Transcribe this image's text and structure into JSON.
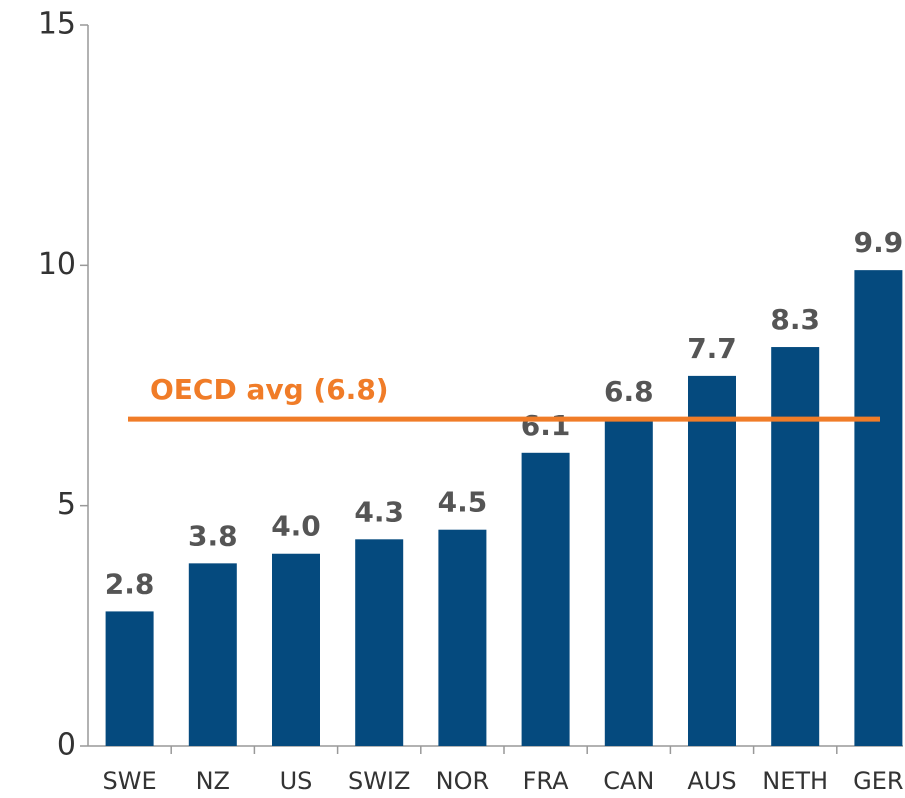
{
  "chart_data": {
    "type": "bar",
    "categories": [
      "SWE",
      "NZ",
      "US",
      "SWIZ",
      "NOR",
      "FRA",
      "CAN",
      "AUS",
      "NETH",
      "GER"
    ],
    "values": [
      2.8,
      3.8,
      4.0,
      4.3,
      4.5,
      6.1,
      6.8,
      7.7,
      8.3,
      9.9
    ],
    "value_labels": [
      "2.8",
      "3.8",
      "4.0",
      "4.3",
      "4.5",
      "6.1",
      "6.8",
      "7.7",
      "8.3",
      "9.9"
    ],
    "color": "#054a7e",
    "ylim": [
      0,
      15
    ],
    "yticks": [
      0,
      5,
      10,
      15
    ],
    "reference_line": {
      "value": 6.8,
      "label": "OECD avg (6.8)",
      "color": "#f07c28"
    }
  }
}
